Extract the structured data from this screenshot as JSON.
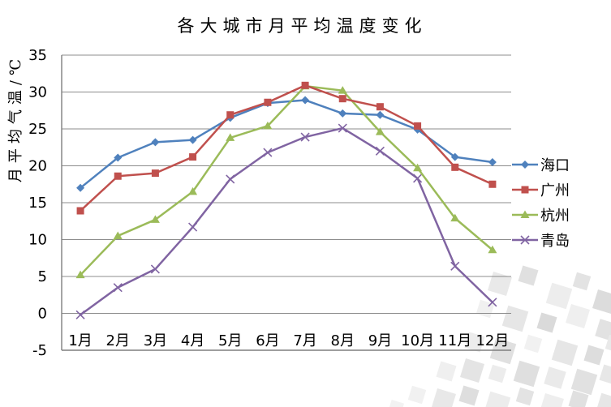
{
  "chart_data": {
    "type": "line",
    "title": "各大城市月平均温度变化",
    "ylabel": "月平均气温/℃",
    "xlabel": "",
    "categories": [
      "1月",
      "2月",
      "3月",
      "4月",
      "5月",
      "6月",
      "7月",
      "8月",
      "9月",
      "10月",
      "11月",
      "12月"
    ],
    "ylim": [
      -5,
      35
    ],
    "yticks": [
      -5,
      0,
      5,
      10,
      15,
      20,
      25,
      30,
      35
    ],
    "grid": true,
    "legend_position": "right",
    "series": [
      {
        "key": "haikou",
        "name": "海口",
        "color": "#4F81BD",
        "marker": "diamond",
        "values": [
          17.0,
          21.1,
          23.2,
          23.5,
          26.5,
          28.5,
          28.9,
          27.1,
          26.9,
          24.9,
          21.2,
          20.5
        ]
      },
      {
        "key": "guangzhou",
        "name": "广州",
        "color": "#C0504D",
        "marker": "square",
        "values": [
          13.9,
          18.6,
          19.0,
          21.2,
          26.9,
          28.6,
          30.9,
          29.1,
          28.0,
          25.4,
          19.8,
          17.5
        ]
      },
      {
        "key": "hangzhou",
        "name": "杭州",
        "color": "#9BBB59",
        "marker": "triangle",
        "values": [
          5.2,
          10.5,
          12.7,
          16.5,
          23.8,
          25.4,
          30.8,
          30.2,
          24.6,
          19.7,
          12.9,
          8.6
        ]
      },
      {
        "key": "qingdao",
        "name": "青岛",
        "color": "#8064A2",
        "marker": "x",
        "values": [
          -0.2,
          3.5,
          6.0,
          11.7,
          18.2,
          21.8,
          23.9,
          25.1,
          22.0,
          18.3,
          6.4,
          1.5
        ]
      }
    ],
    "axis_color": "#7F7F7F",
    "grid_color": "#8C8C8C",
    "text_color": "#000000"
  }
}
